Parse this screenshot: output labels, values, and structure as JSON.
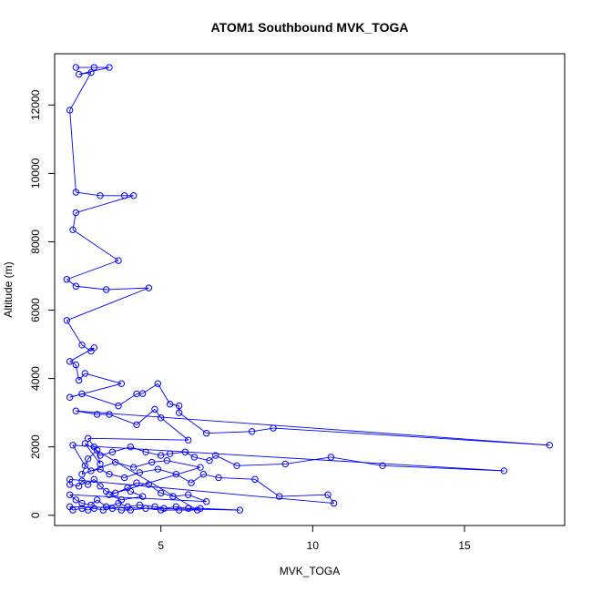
{
  "chart_data": {
    "type": "scatter",
    "title": "ATOM1 Southbound MVK_TOGA",
    "xlabel": "MVK_TOGA",
    "ylabel": "Altitude (m)",
    "xlim": [
      1.5,
      18.3
    ],
    "ylim": [
      -300,
      13500
    ],
    "x_ticks": [
      5,
      10,
      15
    ],
    "y_ticks": [
      0,
      2000,
      4000,
      6000,
      8000,
      10000,
      12000
    ],
    "grid": false,
    "legend": "none",
    "connected": true,
    "series": [
      {
        "color": "#0000ff",
        "points": [
          [
            2.2,
            13100
          ],
          [
            2.8,
            13100
          ],
          [
            3.3,
            13100
          ],
          [
            2.3,
            12900
          ],
          [
            2.7,
            12950
          ],
          [
            2.0,
            11850
          ],
          [
            2.2,
            9450
          ],
          [
            3.0,
            9350
          ],
          [
            3.8,
            9350
          ],
          [
            4.1,
            9350
          ],
          [
            2.2,
            8850
          ],
          [
            2.1,
            8350
          ],
          [
            3.6,
            7450
          ],
          [
            1.9,
            6900
          ],
          [
            2.2,
            6700
          ],
          [
            3.2,
            6600
          ],
          [
            4.6,
            6650
          ],
          [
            1.9,
            5700
          ],
          [
            2.4,
            4980
          ],
          [
            2.7,
            4800
          ],
          [
            2.8,
            4900
          ],
          [
            2.0,
            4500
          ],
          [
            2.2,
            4400
          ],
          [
            2.3,
            3950
          ],
          [
            2.5,
            4150
          ],
          [
            3.7,
            3850
          ],
          [
            2.0,
            3450
          ],
          [
            2.4,
            3550
          ],
          [
            3.6,
            3200
          ],
          [
            4.2,
            3550
          ],
          [
            4.4,
            3560
          ],
          [
            4.9,
            3850
          ],
          [
            5.3,
            3250
          ],
          [
            5.6,
            3200
          ],
          [
            5.6,
            3000
          ],
          [
            6.5,
            2400
          ],
          [
            8.0,
            2450
          ],
          [
            8.7,
            2550
          ],
          [
            17.8,
            2050
          ],
          [
            2.2,
            3050
          ],
          [
            2.9,
            2950
          ],
          [
            3.3,
            2950
          ],
          [
            4.2,
            2650
          ],
          [
            4.8,
            3100
          ],
          [
            5.0,
            2850
          ],
          [
            5.9,
            2200
          ],
          [
            2.6,
            2250
          ],
          [
            2.8,
            2000
          ],
          [
            3.0,
            1750
          ],
          [
            3.4,
            1850
          ],
          [
            4.0,
            2000
          ],
          [
            4.5,
            1850
          ],
          [
            5.0,
            1750
          ],
          [
            5.3,
            1800
          ],
          [
            5.8,
            1850
          ],
          [
            6.1,
            1700
          ],
          [
            6.6,
            1600
          ],
          [
            6.8,
            1750
          ],
          [
            7.5,
            1450
          ],
          [
            9.1,
            1500
          ],
          [
            10.6,
            1700
          ],
          [
            12.3,
            1450
          ],
          [
            16.3,
            1300
          ],
          [
            2.1,
            2050
          ],
          [
            2.5,
            1450
          ],
          [
            2.7,
            1300
          ],
          [
            3.0,
            1350
          ],
          [
            3.3,
            1200
          ],
          [
            3.8,
            1100
          ],
          [
            4.3,
            1250
          ],
          [
            4.9,
            1350
          ],
          [
            5.5,
            1200
          ],
          [
            6.0,
            950
          ],
          [
            6.4,
            1200
          ],
          [
            6.9,
            1100
          ],
          [
            8.1,
            1050
          ],
          [
            8.9,
            550
          ],
          [
            10.5,
            600
          ],
          [
            10.7,
            350
          ],
          [
            2.0,
            1050
          ],
          [
            2.0,
            900
          ],
          [
            2.3,
            850
          ],
          [
            2.4,
            1000
          ],
          [
            2.6,
            900
          ],
          [
            2.8,
            1050
          ],
          [
            3.0,
            850
          ],
          [
            3.2,
            700
          ],
          [
            3.5,
            650
          ],
          [
            3.9,
            800
          ],
          [
            4.2,
            950
          ],
          [
            4.6,
            900
          ],
          [
            5.0,
            650
          ],
          [
            5.4,
            550
          ],
          [
            5.9,
            600
          ],
          [
            6.5,
            400
          ],
          [
            2.0,
            600
          ],
          [
            2.2,
            450
          ],
          [
            2.4,
            350
          ],
          [
            2.7,
            300
          ],
          [
            2.9,
            450
          ],
          [
            3.2,
            250
          ],
          [
            3.6,
            350
          ],
          [
            3.9,
            250
          ],
          [
            4.3,
            300
          ],
          [
            4.8,
            250
          ],
          [
            5.1,
            200
          ],
          [
            5.5,
            250
          ],
          [
            5.9,
            200
          ],
          [
            6.3,
            200
          ],
          [
            7.6,
            150
          ],
          [
            2.0,
            250
          ],
          [
            2.1,
            150
          ],
          [
            2.4,
            200
          ],
          [
            2.6,
            150
          ],
          [
            2.8,
            200
          ],
          [
            3.1,
            150
          ],
          [
            3.4,
            200
          ],
          [
            3.7,
            150
          ],
          [
            4.0,
            150
          ],
          [
            4.5,
            200
          ],
          [
            5.0,
            150
          ],
          [
            5.6,
            150
          ],
          [
            6.2,
            150
          ],
          [
            2.5,
            2100
          ],
          [
            3.0,
            1500
          ],
          [
            2.9,
            1900
          ],
          [
            2.6,
            1650
          ],
          [
            2.4,
            1200
          ],
          [
            3.5,
            1550
          ],
          [
            4.1,
            1400
          ],
          [
            4.7,
            1550
          ],
          [
            5.2,
            1600
          ],
          [
            6.3,
            1400
          ],
          [
            3.3,
            600
          ],
          [
            3.7,
            450
          ],
          [
            4.4,
            550
          ],
          [
            4.0,
            700
          ]
        ]
      }
    ]
  }
}
